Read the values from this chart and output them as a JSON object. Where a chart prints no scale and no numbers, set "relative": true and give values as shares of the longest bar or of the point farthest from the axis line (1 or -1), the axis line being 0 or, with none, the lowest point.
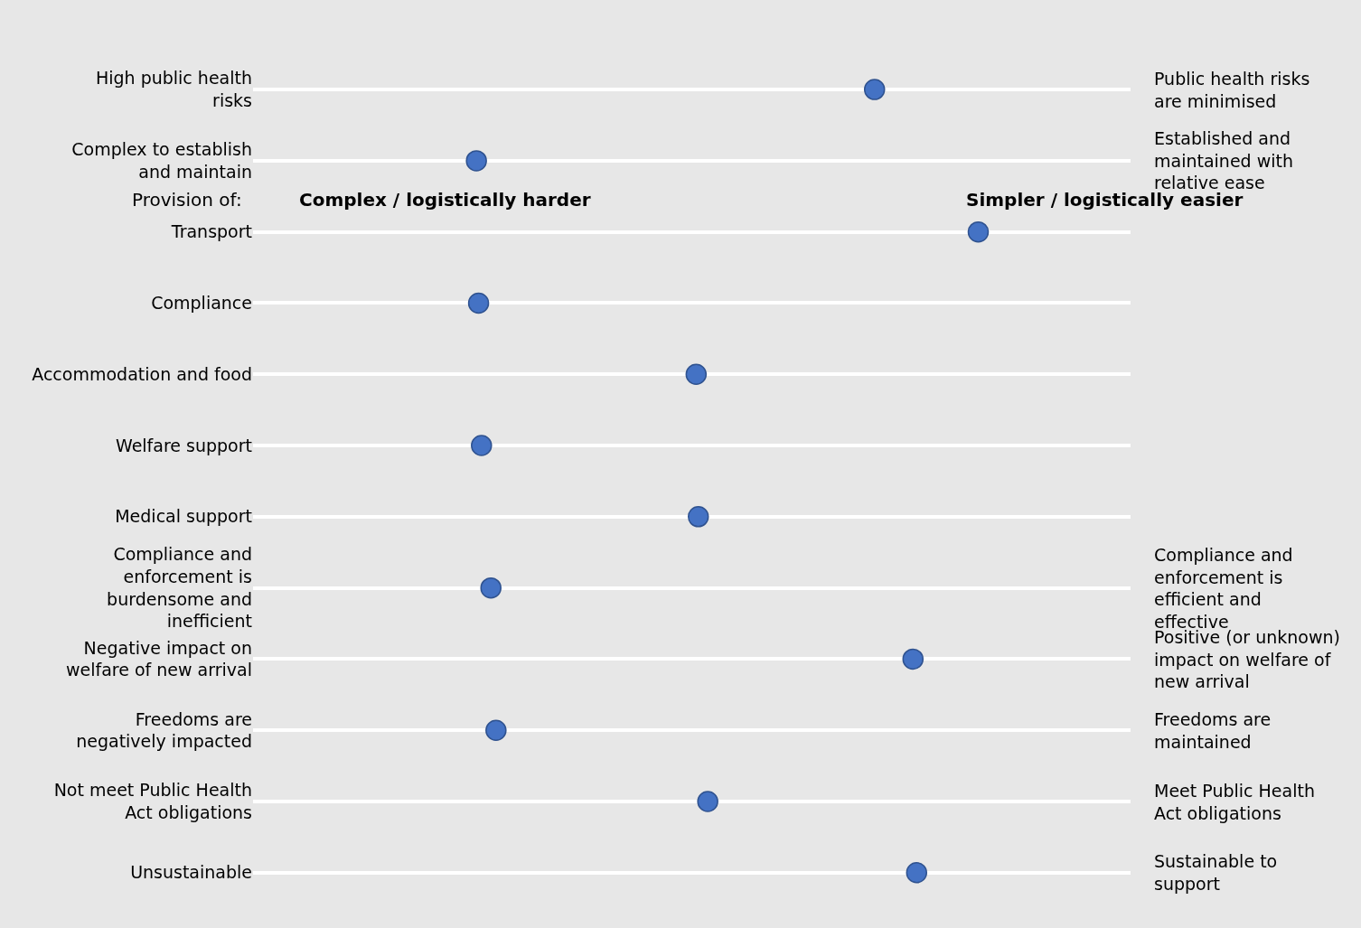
{
  "chart_data": {
    "type": "scatter",
    "orientation": "horizontal",
    "relative": true,
    "grid": "y",
    "marker": "circle",
    "categories": [
      "High public health risks",
      "Complex to establish and maintain",
      "Transport",
      "Compliance",
      "Accommodation and food",
      "Welfare support",
      "Medical support",
      "Compliance and enforcement is burdensome and inefficient",
      "Negative impact on welfare of new arrival",
      "Freedoms are negatively impacted",
      "Not meet Public Health Act obligations",
      "Unsustainable"
    ],
    "y2_categories": [
      "Public health risks are minimised",
      "Established and maintained with relative ease",
      null,
      null,
      null,
      null,
      null,
      "Compliance and enforcement is efficient and effective",
      "Positive (or unknown) impact on welfare of new arrival",
      "Freedoms are maintained",
      "Meet Public Health Act obligations",
      "Sustainable to support"
    ],
    "series": [
      {
        "color": "#4472c4",
        "values": [
          0.857,
          0.308,
          1,
          0.311,
          0.611,
          0.315,
          0.614,
          0.328,
          0.91,
          0.335,
          0.627,
          0.915
        ]
      }
    ],
    "annotations": [
      "Provision of:",
      "Complex / logistically harder",
      "Simpler / logistically easier"
    ]
  }
}
